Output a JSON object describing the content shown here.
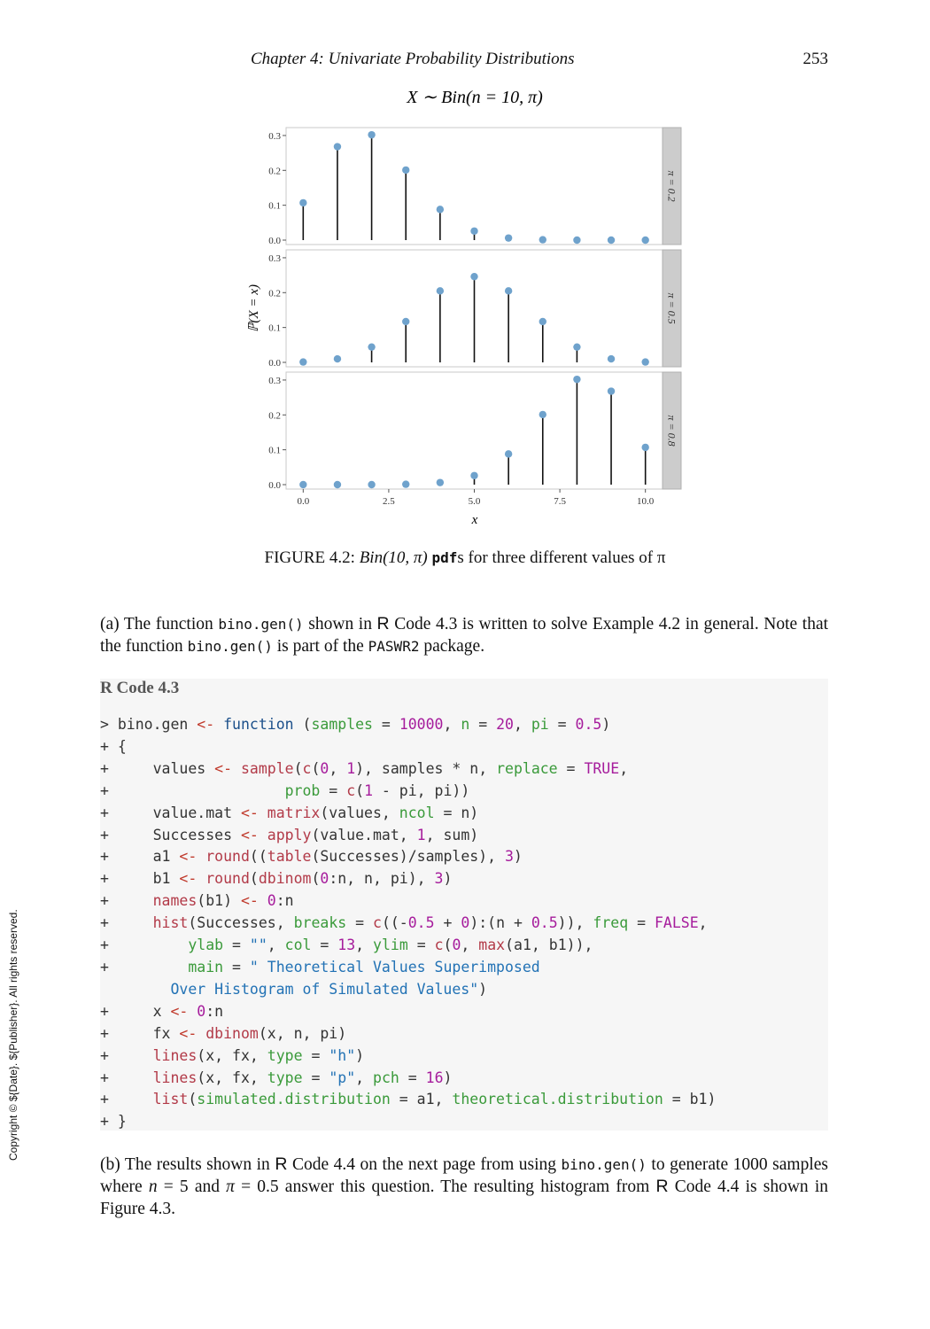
{
  "header": {
    "running_head": "Chapter 4:   Univariate Probability Distributions",
    "page_number": "253"
  },
  "side_text": "Copyright © ${Date}. ${Publisher}. All rights reserved.",
  "chart_data": {
    "type": "stem",
    "title": "X ∼ Bin(n = 10, π)",
    "xlabel": "x",
    "ylabel": "ℙ(X = x)",
    "x": [
      0,
      1,
      2,
      3,
      4,
      5,
      6,
      7,
      8,
      9,
      10
    ],
    "x_ticks": [
      "0.0",
      "2.5",
      "5.0",
      "7.5",
      "10.0"
    ],
    "y_ticks": [
      "0.0",
      "0.1",
      "0.2",
      "0.3"
    ],
    "xlim": [
      -0.5,
      10.5
    ],
    "ylim": [
      0,
      0.31
    ],
    "point_color": "#6fa2cc",
    "panels": [
      {
        "label": "π = 0.2",
        "values": [
          0.107,
          0.268,
          0.302,
          0.201,
          0.088,
          0.026,
          0.006,
          0.001,
          0.0,
          0.0,
          0.0
        ]
      },
      {
        "label": "π = 0.5",
        "values": [
          0.001,
          0.01,
          0.044,
          0.117,
          0.205,
          0.246,
          0.205,
          0.117,
          0.044,
          0.01,
          0.001
        ]
      },
      {
        "label": "π = 0.8",
        "values": [
          0.0,
          0.0,
          0.0,
          0.001,
          0.006,
          0.026,
          0.088,
          0.201,
          0.302,
          0.268,
          0.107
        ]
      }
    ]
  },
  "caption": {
    "prefix": "FIGURE 4.2: ",
    "math": "Bin(10, π)",
    "mono": "pdf",
    "suffix": "s for three different values of π"
  },
  "para_a": {
    "t1": "(a) The function ",
    "c1": "bino.gen()",
    "t2": " shown in ",
    "r": "R",
    "t3": " Code 4.3 is written to solve Example 4.2 in general. Note that the function ",
    "c2": "bino.gen()",
    "t4": " is part of the ",
    "c3": "PASWR2",
    "t5": " package."
  },
  "code": {
    "title": "R Code 4.3",
    "lines": [
      "> bino.gen <- function (samples = 10000, n = 20, pi = 0.5)",
      "+ {",
      "+     values <- sample(c(0, 1), samples * n, replace = TRUE,",
      "+                    prob = c(1 - pi, pi))",
      "+     value.mat <- matrix(values, ncol = n)",
      "+     Successes <- apply(value.mat, 1, sum)",
      "+     a1 <- round((table(Successes)/samples), 3)",
      "+     b1 <- round(dbinom(0:n, n, pi), 3)",
      "+     names(b1) <- 0:n",
      "+     hist(Successes, breaks = c((-0.5 + 0):(n + 0.5)), freq = FALSE,",
      "+         ylab = \"\", col = 13, ylim = c(0, max(a1, b1)),",
      "+         main = \" Theoretical Values Superimposed",
      "        Over Histogram of Simulated Values\")",
      "+     x <- 0:n",
      "+     fx <- dbinom(x, n, pi)",
      "+     lines(x, fx, type = \"h\")",
      "+     lines(x, fx, type = \"p\", pch = 16)",
      "+     list(simulated.distribution = a1, theoretical.distribution = b1)",
      "+ }"
    ]
  },
  "para_b": {
    "t1": "(b) The results shown in ",
    "r1": "R",
    "t2": " Code 4.4 on the next page from using ",
    "c1": "bino.gen()",
    "t3": " to generate 1000 samples where ",
    "m1": "n",
    "t4": " = 5 and ",
    "m2": "π",
    "t5": " = 0.5 answer this question. The resulting histogram from ",
    "r2": "R",
    "t6": " Code 4.4 is shown in Figure 4.3."
  }
}
